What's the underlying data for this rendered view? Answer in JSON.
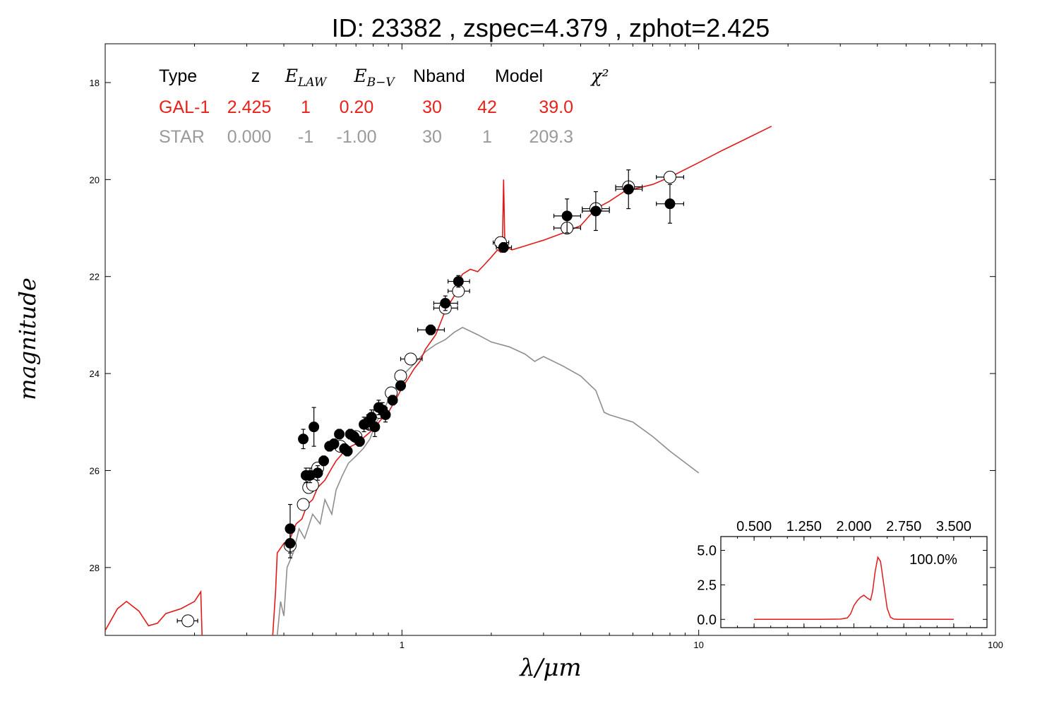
{
  "chart_data": {
    "type": "scatter",
    "title": "ID:  23382 , zspec=4.379 , zphot=2.425",
    "xlabel": "λ/μm",
    "ylabel": "magnitude",
    "xscale": "log",
    "xlim": [
      0.1,
      100
    ],
    "ylim": [
      29.4,
      17.2
    ],
    "y_inverted": true,
    "x_ticks": [
      {
        "v": 1,
        "label": "1"
      },
      {
        "v": 10,
        "label": "10"
      },
      {
        "v": 100,
        "label": "100"
      }
    ],
    "y_ticks": [
      {
        "v": 18,
        "label": "18"
      },
      {
        "v": 20,
        "label": "20"
      },
      {
        "v": 22,
        "label": "22"
      },
      {
        "v": 24,
        "label": "24"
      },
      {
        "v": 26,
        "label": "26"
      },
      {
        "v": 28,
        "label": "28"
      }
    ],
    "table": {
      "headers": [
        "Type",
        "z",
        "E_LAW",
        "E_B−V",
        "Nband",
        "Model",
        "χ²"
      ],
      "rows": [
        {
          "cells": [
            "GAL-1",
            "2.425",
            "1",
            "0.20",
            "30",
            "42",
            "39.0"
          ],
          "color": "#e8221a"
        },
        {
          "cells": [
            "STAR",
            "0.000",
            "-1",
            "-1.00",
            "30",
            "1",
            "209.3"
          ],
          "color": "#9a9a9a"
        }
      ]
    },
    "series": [
      {
        "kind": "line",
        "color": "#e01a1a",
        "points": [
          [
            0.1,
            29.3
          ],
          [
            0.11,
            28.85
          ],
          [
            0.118,
            28.7
          ],
          [
            0.13,
            28.9
          ],
          [
            0.14,
            29.2
          ],
          [
            0.15,
            29.15
          ],
          [
            0.16,
            28.95
          ],
          [
            0.18,
            28.85
          ],
          [
            0.2,
            28.7
          ],
          [
            0.21,
            28.5
          ],
          [
            0.212,
            29.4
          ],
          null,
          [
            0.367,
            29.4
          ],
          [
            0.375,
            28.5
          ],
          [
            0.38,
            27.7
          ],
          [
            0.39,
            27.6
          ],
          [
            0.4,
            27.5
          ],
          [
            0.42,
            27.4
          ],
          [
            0.44,
            27.1
          ],
          [
            0.46,
            27.0
          ],
          [
            0.48,
            26.7
          ],
          [
            0.5,
            26.6
          ],
          [
            0.52,
            26.35
          ],
          [
            0.55,
            26.2
          ],
          [
            0.58,
            25.95
          ],
          [
            0.6,
            25.8
          ],
          [
            0.62,
            25.7
          ],
          [
            0.65,
            25.55
          ],
          [
            0.7,
            25.45
          ],
          [
            0.75,
            25.3
          ],
          [
            0.8,
            25.15
          ],
          [
            0.85,
            24.95
          ],
          [
            0.9,
            24.8
          ],
          [
            0.95,
            24.55
          ],
          [
            1.0,
            24.3
          ],
          [
            1.05,
            24.1
          ],
          [
            1.1,
            23.9
          ],
          [
            1.15,
            23.75
          ],
          [
            1.2,
            23.5
          ],
          [
            1.3,
            23.2
          ],
          [
            1.4,
            22.7
          ],
          [
            1.5,
            22.4
          ],
          [
            1.55,
            22.1
          ],
          [
            1.6,
            21.95
          ],
          [
            1.7,
            21.85
          ],
          [
            1.8,
            21.9
          ],
          [
            1.9,
            21.75
          ],
          [
            2.0,
            21.6
          ],
          [
            2.1,
            21.45
          ],
          [
            2.15,
            21.5
          ],
          [
            2.18,
            21.4
          ],
          [
            2.2,
            20.0
          ],
          [
            2.22,
            21.2
          ],
          [
            2.26,
            21.4
          ],
          [
            2.35,
            21.45
          ],
          [
            2.5,
            21.4
          ],
          [
            3.0,
            21.25
          ],
          [
            3.5,
            21.1
          ],
          [
            4.0,
            20.95
          ],
          [
            4.5,
            20.6
          ],
          [
            5.0,
            20.45
          ],
          [
            5.6,
            20.25
          ],
          [
            6.0,
            20.2
          ],
          [
            7.0,
            20.1
          ],
          [
            8.0,
            19.95
          ],
          [
            10.0,
            19.65
          ],
          [
            12.0,
            19.4
          ],
          [
            14.0,
            19.2
          ],
          [
            17.6,
            18.9
          ]
        ]
      },
      {
        "kind": "line",
        "color": "#8e8e8e",
        "points": [
          [
            0.38,
            29.4
          ],
          [
            0.39,
            28.7
          ],
          [
            0.4,
            29.0
          ],
          [
            0.41,
            28.0
          ],
          [
            0.43,
            27.7
          ],
          [
            0.45,
            27.2
          ],
          [
            0.47,
            27.4
          ],
          [
            0.5,
            26.9
          ],
          [
            0.53,
            27.1
          ],
          [
            0.55,
            26.6
          ],
          [
            0.58,
            26.9
          ],
          [
            0.6,
            26.4
          ],
          [
            0.63,
            26.1
          ],
          [
            0.66,
            25.85
          ],
          [
            0.7,
            25.7
          ],
          [
            0.74,
            25.55
          ],
          [
            0.78,
            25.35
          ],
          [
            0.82,
            25.0
          ],
          [
            0.86,
            24.8
          ],
          [
            0.9,
            24.55
          ],
          [
            0.95,
            24.3
          ],
          [
            1.0,
            24.05
          ],
          [
            1.1,
            23.8
          ],
          [
            1.2,
            23.55
          ],
          [
            1.3,
            23.4
          ],
          [
            1.4,
            23.3
          ],
          [
            1.5,
            23.15
          ],
          [
            1.6,
            23.05
          ],
          [
            1.8,
            23.2
          ],
          [
            2.0,
            23.35
          ],
          [
            2.3,
            23.45
          ],
          [
            2.6,
            23.6
          ],
          [
            2.8,
            23.75
          ],
          [
            3.0,
            23.65
          ],
          [
            3.5,
            23.85
          ],
          [
            4.0,
            24.05
          ],
          [
            4.5,
            24.35
          ],
          [
            4.8,
            24.8
          ],
          [
            5.0,
            24.85
          ],
          [
            6.0,
            25.0
          ],
          [
            7.0,
            25.3
          ],
          [
            8.0,
            25.6
          ],
          [
            10.0,
            26.05
          ]
        ]
      }
    ],
    "observed_points": [
      {
        "x": 0.42,
        "y": 27.2,
        "xerr_lo": 0,
        "xerr_hi": 0,
        "yerr": 0.5
      },
      {
        "x": 0.42,
        "y": 27.5,
        "xerr_lo": 0,
        "xerr_hi": 0,
        "yerr": 0.3
      },
      {
        "x": 0.465,
        "y": 25.35,
        "xerr_lo": 0,
        "xerr_hi": 0,
        "yerr": 0.2
      },
      {
        "x": 0.475,
        "y": 26.1,
        "xerr_lo": 0,
        "xerr_hi": 0,
        "yerr": 0.15
      },
      {
        "x": 0.49,
        "y": 26.1,
        "xerr_lo": 0,
        "xerr_hi": 0,
        "yerr": 0.15
      },
      {
        "x": 0.505,
        "y": 25.1,
        "xerr_lo": 0,
        "xerr_hi": 0,
        "yerr": 0.4
      },
      {
        "x": 0.52,
        "y": 26.05,
        "xerr_lo": 0,
        "xerr_hi": 0,
        "yerr": 0.15
      },
      {
        "x": 0.545,
        "y": 25.8,
        "xerr_lo": 0,
        "xerr_hi": 0,
        "yerr": 0.1
      },
      {
        "x": 0.57,
        "y": 25.5,
        "xerr_lo": 0,
        "xerr_hi": 0,
        "yerr": 0.1
      },
      {
        "x": 0.59,
        "y": 25.45,
        "xerr_lo": 0,
        "xerr_hi": 0,
        "yerr": 0.1
      },
      {
        "x": 0.615,
        "y": 25.25,
        "xerr_lo": 0,
        "xerr_hi": 0,
        "yerr": 0.1
      },
      {
        "x": 0.64,
        "y": 25.55,
        "xerr_lo": 0,
        "xerr_hi": 0,
        "yerr": 0.1
      },
      {
        "x": 0.655,
        "y": 25.6,
        "xerr_lo": 0,
        "xerr_hi": 0,
        "yerr": 0.1
      },
      {
        "x": 0.67,
        "y": 25.25,
        "xerr_lo": 0,
        "xerr_hi": 0,
        "yerr": 0.1
      },
      {
        "x": 0.69,
        "y": 25.3,
        "xerr_lo": 0,
        "xerr_hi": 0,
        "yerr": 0.1
      },
      {
        "x": 0.72,
        "y": 25.4,
        "xerr_lo": 0,
        "xerr_hi": 0,
        "yerr": 0.1
      },
      {
        "x": 0.745,
        "y": 25.05,
        "xerr_lo": 0,
        "xerr_hi": 0,
        "yerr": 0.15
      },
      {
        "x": 0.77,
        "y": 25.0,
        "xerr_lo": 0,
        "xerr_hi": 0,
        "yerr": 0.15
      },
      {
        "x": 0.79,
        "y": 24.9,
        "xerr_lo": 0,
        "xerr_hi": 0,
        "yerr": 0.15
      },
      {
        "x": 0.81,
        "y": 25.1,
        "xerr_lo": 0,
        "xerr_hi": 0,
        "yerr": 0.2
      },
      {
        "x": 0.835,
        "y": 24.7,
        "xerr_lo": 0,
        "xerr_hi": 0,
        "yerr": 0.15
      },
      {
        "x": 0.86,
        "y": 24.75,
        "xerr_lo": 0,
        "xerr_hi": 0,
        "yerr": 0.15
      },
      {
        "x": 0.88,
        "y": 24.85,
        "xerr_lo": 0,
        "xerr_hi": 0,
        "yerr": 0.15
      },
      {
        "x": 0.93,
        "y": 24.55,
        "xerr_lo": 0,
        "xerr_hi": 0,
        "yerr": 0.1
      },
      {
        "x": 0.99,
        "y": 24.25,
        "xerr_lo": 0,
        "xerr_hi": 0,
        "yerr": 0.1
      },
      {
        "x": 1.25,
        "y": 23.1,
        "xerr_lo": 0.12,
        "xerr_hi": 0.14,
        "yerr": 0.1
      },
      {
        "x": 1.4,
        "y": 22.55,
        "xerr_lo": 0.12,
        "xerr_hi": 0.14,
        "yerr": 0.15
      },
      {
        "x": 1.55,
        "y": 22.1,
        "xerr_lo": 0.12,
        "xerr_hi": 0.14,
        "yerr": 0.12
      },
      {
        "x": 2.2,
        "y": 21.4,
        "xerr_lo": 0.12,
        "xerr_hi": 0.14,
        "yerr": 0.1
      },
      {
        "x": 3.6,
        "y": 20.75,
        "xerr_lo": 0.35,
        "xerr_hi": 0.4,
        "yerr": 0.35
      },
      {
        "x": 4.5,
        "y": 20.65,
        "xerr_lo": 0.45,
        "xerr_hi": 0.5,
        "yerr": 0.4
      },
      {
        "x": 5.8,
        "y": 20.2,
        "xerr_lo": 0.55,
        "xerr_hi": 0.65,
        "yerr": 0.4
      },
      {
        "x": 8.0,
        "y": 20.5,
        "xerr_lo": 0.8,
        "xerr_hi": 0.9,
        "yerr": 0.4
      }
    ],
    "model_points": [
      {
        "x": 0.19,
        "y": 29.1,
        "xerr_lo": 0.015,
        "xerr_hi": 0.015
      },
      {
        "x": 0.42,
        "y": 27.55,
        "xerr_lo": 0,
        "xerr_hi": 0
      },
      {
        "x": 0.465,
        "y": 26.7,
        "xerr_lo": 0,
        "xerr_hi": 0
      },
      {
        "x": 0.485,
        "y": 26.35,
        "xerr_lo": 0,
        "xerr_hi": 0
      },
      {
        "x": 0.5,
        "y": 26.3,
        "xerr_lo": 0,
        "xerr_hi": 0
      },
      {
        "x": 0.52,
        "y": 25.95,
        "xerr_lo": 0,
        "xerr_hi": 0
      },
      {
        "x": 0.62,
        "y": 25.5,
        "xerr_lo": 0,
        "xerr_hi": 0
      },
      {
        "x": 0.7,
        "y": 25.3,
        "xerr_lo": 0,
        "xerr_hi": 0
      },
      {
        "x": 0.78,
        "y": 25.05,
        "xerr_lo": 0,
        "xerr_hi": 0
      },
      {
        "x": 0.84,
        "y": 24.8,
        "xerr_lo": 0,
        "xerr_hi": 0
      },
      {
        "x": 0.92,
        "y": 24.4,
        "xerr_lo": 0,
        "xerr_hi": 0
      },
      {
        "x": 0.99,
        "y": 24.05,
        "xerr_lo": 0,
        "xerr_hi": 0
      },
      {
        "x": 1.07,
        "y": 23.7,
        "xerr_lo": 0.08,
        "xerr_hi": 0.1
      },
      {
        "x": 1.4,
        "y": 22.65,
        "xerr_lo": 0.12,
        "xerr_hi": 0.14
      },
      {
        "x": 1.55,
        "y": 22.3,
        "xerr_lo": 0.12,
        "xerr_hi": 0.14
      },
      {
        "x": 2.15,
        "y": 21.3,
        "xerr_lo": 0.12,
        "xerr_hi": 0.14
      },
      {
        "x": 3.6,
        "y": 21.0,
        "xerr_lo": 0.35,
        "xerr_hi": 0.4
      },
      {
        "x": 4.5,
        "y": 20.6,
        "xerr_lo": 0.45,
        "xerr_hi": 0.5
      },
      {
        "x": 5.8,
        "y": 20.15,
        "xerr_lo": 0.55,
        "xerr_hi": 0.65
      },
      {
        "x": 8.0,
        "y": 19.95,
        "xerr_lo": 0.8,
        "xerr_hi": 0.9
      }
    ],
    "inset": {
      "type": "line",
      "color": "#e01a1a",
      "annotation": "100.0%",
      "xlim": [
        0.0,
        4.0
      ],
      "ylim": [
        -0.6,
        6.0
      ],
      "x_ticks": [
        {
          "v": 0.5,
          "label": "0.500"
        },
        {
          "v": 1.25,
          "label": "1.250"
        },
        {
          "v": 2.0,
          "label": "2.000"
        },
        {
          "v": 2.75,
          "label": "2.750"
        },
        {
          "v": 3.5,
          "label": "3.500"
        }
      ],
      "y_ticks": [
        {
          "v": 0.0,
          "label": "0.0"
        },
        {
          "v": 2.5,
          "label": "2.5"
        },
        {
          "v": 5.0,
          "label": "5.0"
        }
      ],
      "points": [
        [
          0.5,
          0.0
        ],
        [
          1.5,
          0.0
        ],
        [
          1.8,
          0.02
        ],
        [
          1.9,
          0.1
        ],
        [
          1.95,
          0.4
        ],
        [
          2.0,
          1.0
        ],
        [
          2.05,
          1.35
        ],
        [
          2.1,
          1.6
        ],
        [
          2.15,
          1.75
        ],
        [
          2.2,
          1.55
        ],
        [
          2.25,
          1.4
        ],
        [
          2.28,
          2.0
        ],
        [
          2.32,
          3.5
        ],
        [
          2.36,
          4.5
        ],
        [
          2.4,
          4.2
        ],
        [
          2.45,
          2.5
        ],
        [
          2.5,
          0.8
        ],
        [
          2.55,
          0.15
        ],
        [
          2.6,
          0.02
        ],
        [
          2.7,
          0.0
        ],
        [
          3.5,
          0.0
        ]
      ]
    }
  }
}
